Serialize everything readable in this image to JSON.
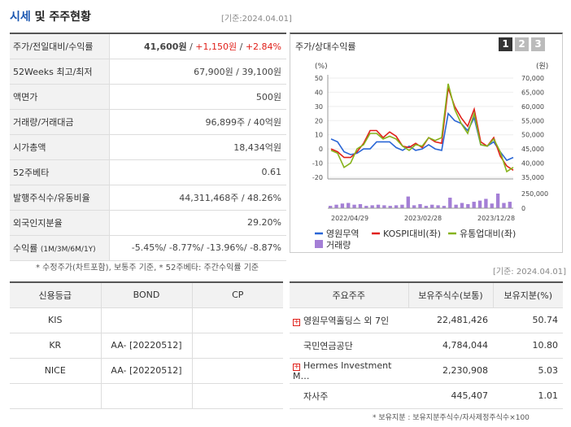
{
  "header": {
    "title_main": "시세",
    "title_rest": " 및 주주현황",
    "date": "[기준:2024.04.01]"
  },
  "info_rows": [
    {
      "label": "주가/전일대비/수익률",
      "v1": "41,600원",
      "sep1": " / ",
      "v2": "+1,150원",
      "sep2": " / ",
      "v3": "+2.84%"
    },
    {
      "label": "52Weeks 최고/최저",
      "value": "67,900원 / 39,100원"
    },
    {
      "label": "액면가",
      "value": "500원"
    },
    {
      "label": "거래량/거래대금",
      "value": "96,899주 / 40억원"
    },
    {
      "label": "시가총액",
      "value": "18,434억원"
    },
    {
      "label": "52주베타",
      "value": "0.61"
    },
    {
      "label": "발행주식수/유동비율",
      "value": "44,311,468주 / 48.26%"
    },
    {
      "label": "외국인지분율",
      "value": "29.20%"
    },
    {
      "label": "수익률",
      "label_sub": "(1M/3M/6M/1Y)",
      "value": "-5.45%/ -8.77%/ -13.96%/ -8.87%"
    }
  ],
  "info_note": "* 수정주가(차트포함), 보통주 기준, * 52주베타: 주간수익률 기준",
  "chart_panel": {
    "title": "주가/상대수익률",
    "buttons": [
      "1",
      "2",
      "3"
    ],
    "left_unit": "(%)",
    "right_unit": "(원)"
  },
  "chart_data": {
    "type": "line",
    "x_ticks": [
      "2022/04/29",
      "2023/02/28",
      "2023/12/28"
    ],
    "y_left": {
      "ticks": [
        50,
        40,
        30,
        20,
        10,
        0,
        -10,
        -20
      ],
      "range": [
        -20,
        50
      ]
    },
    "y_right": {
      "ticks": [
        "70,000",
        "65,000",
        "60,000",
        "55,000",
        "50,000",
        "45,000",
        "40,000",
        "35,000"
      ],
      "range": [
        35000,
        70000
      ]
    },
    "volume_axis": {
      "ticks": [
        "250,000",
        "0"
      ],
      "range": [
        0,
        250000
      ]
    },
    "series": [
      {
        "name": "영원무역",
        "color": "#2a66d6",
        "values": [
          7,
          5,
          -2,
          -4,
          -3,
          0,
          0,
          5,
          5,
          5,
          1,
          -1,
          2,
          -1,
          0,
          3,
          0,
          -1,
          25,
          20,
          18,
          13,
          22,
          3,
          2,
          5,
          -2,
          -8,
          -6
        ]
      },
      {
        "name": "KOSPI대비(좌)",
        "color": "#e0201a",
        "values": [
          0,
          -2,
          -6,
          -6,
          -2,
          4,
          13,
          13,
          8,
          12,
          9,
          2,
          1,
          4,
          1,
          8,
          5,
          4,
          43,
          30,
          22,
          16,
          28,
          5,
          2,
          8,
          -5,
          -12,
          -15
        ]
      },
      {
        "name": "유통업대비(좌)",
        "color": "#86b31b",
        "values": [
          -1,
          -3,
          -13,
          -10,
          0,
          3,
          11,
          11,
          7,
          9,
          7,
          2,
          -1,
          3,
          2,
          8,
          6,
          8,
          46,
          28,
          18,
          11,
          25,
          3,
          2,
          7,
          -2,
          -16,
          -13
        ]
      }
    ],
    "volume": {
      "name": "거래량",
      "color": "#a47fd6",
      "values": [
        40000,
        60000,
        80000,
        90000,
        60000,
        70000,
        40000,
        50000,
        60000,
        50000,
        40000,
        50000,
        60000,
        200000,
        50000,
        70000,
        40000,
        60000,
        50000,
        40000,
        180000,
        60000,
        90000,
        70000,
        110000,
        130000,
        160000,
        80000,
        260000,
        90000,
        110000
      ]
    }
  },
  "credit": {
    "headers": [
      "신용등급",
      "BOND",
      "CP"
    ],
    "rows": [
      [
        "KIS",
        "",
        ""
      ],
      [
        "KR",
        "AA-   [20220512]",
        ""
      ],
      [
        "NICE",
        "AA-   [20220512]",
        ""
      ],
      [
        "",
        "",
        ""
      ]
    ]
  },
  "holders": {
    "date": "[기준: 2024.04.01]",
    "headers": [
      "주요주주",
      "보유주식수(보통)",
      "보유지분(%)"
    ],
    "rows": [
      {
        "name": "영원무역홀딩스 외 7인",
        "shares": "22,481,426",
        "pct": "50.74",
        "expand": "+"
      },
      {
        "name": "국민연금공단",
        "shares": "4,784,044",
        "pct": "10.80",
        "expand": ""
      },
      {
        "name": "Hermes Investment M…",
        "shares": "2,230,908",
        "pct": "5.03",
        "expand": "+"
      },
      {
        "name": "자사주",
        "shares": "445,407",
        "pct": "1.01",
        "expand": ""
      }
    ],
    "note": "* 보유지분 : 보유지분주식수/자사제정주식수×100"
  }
}
